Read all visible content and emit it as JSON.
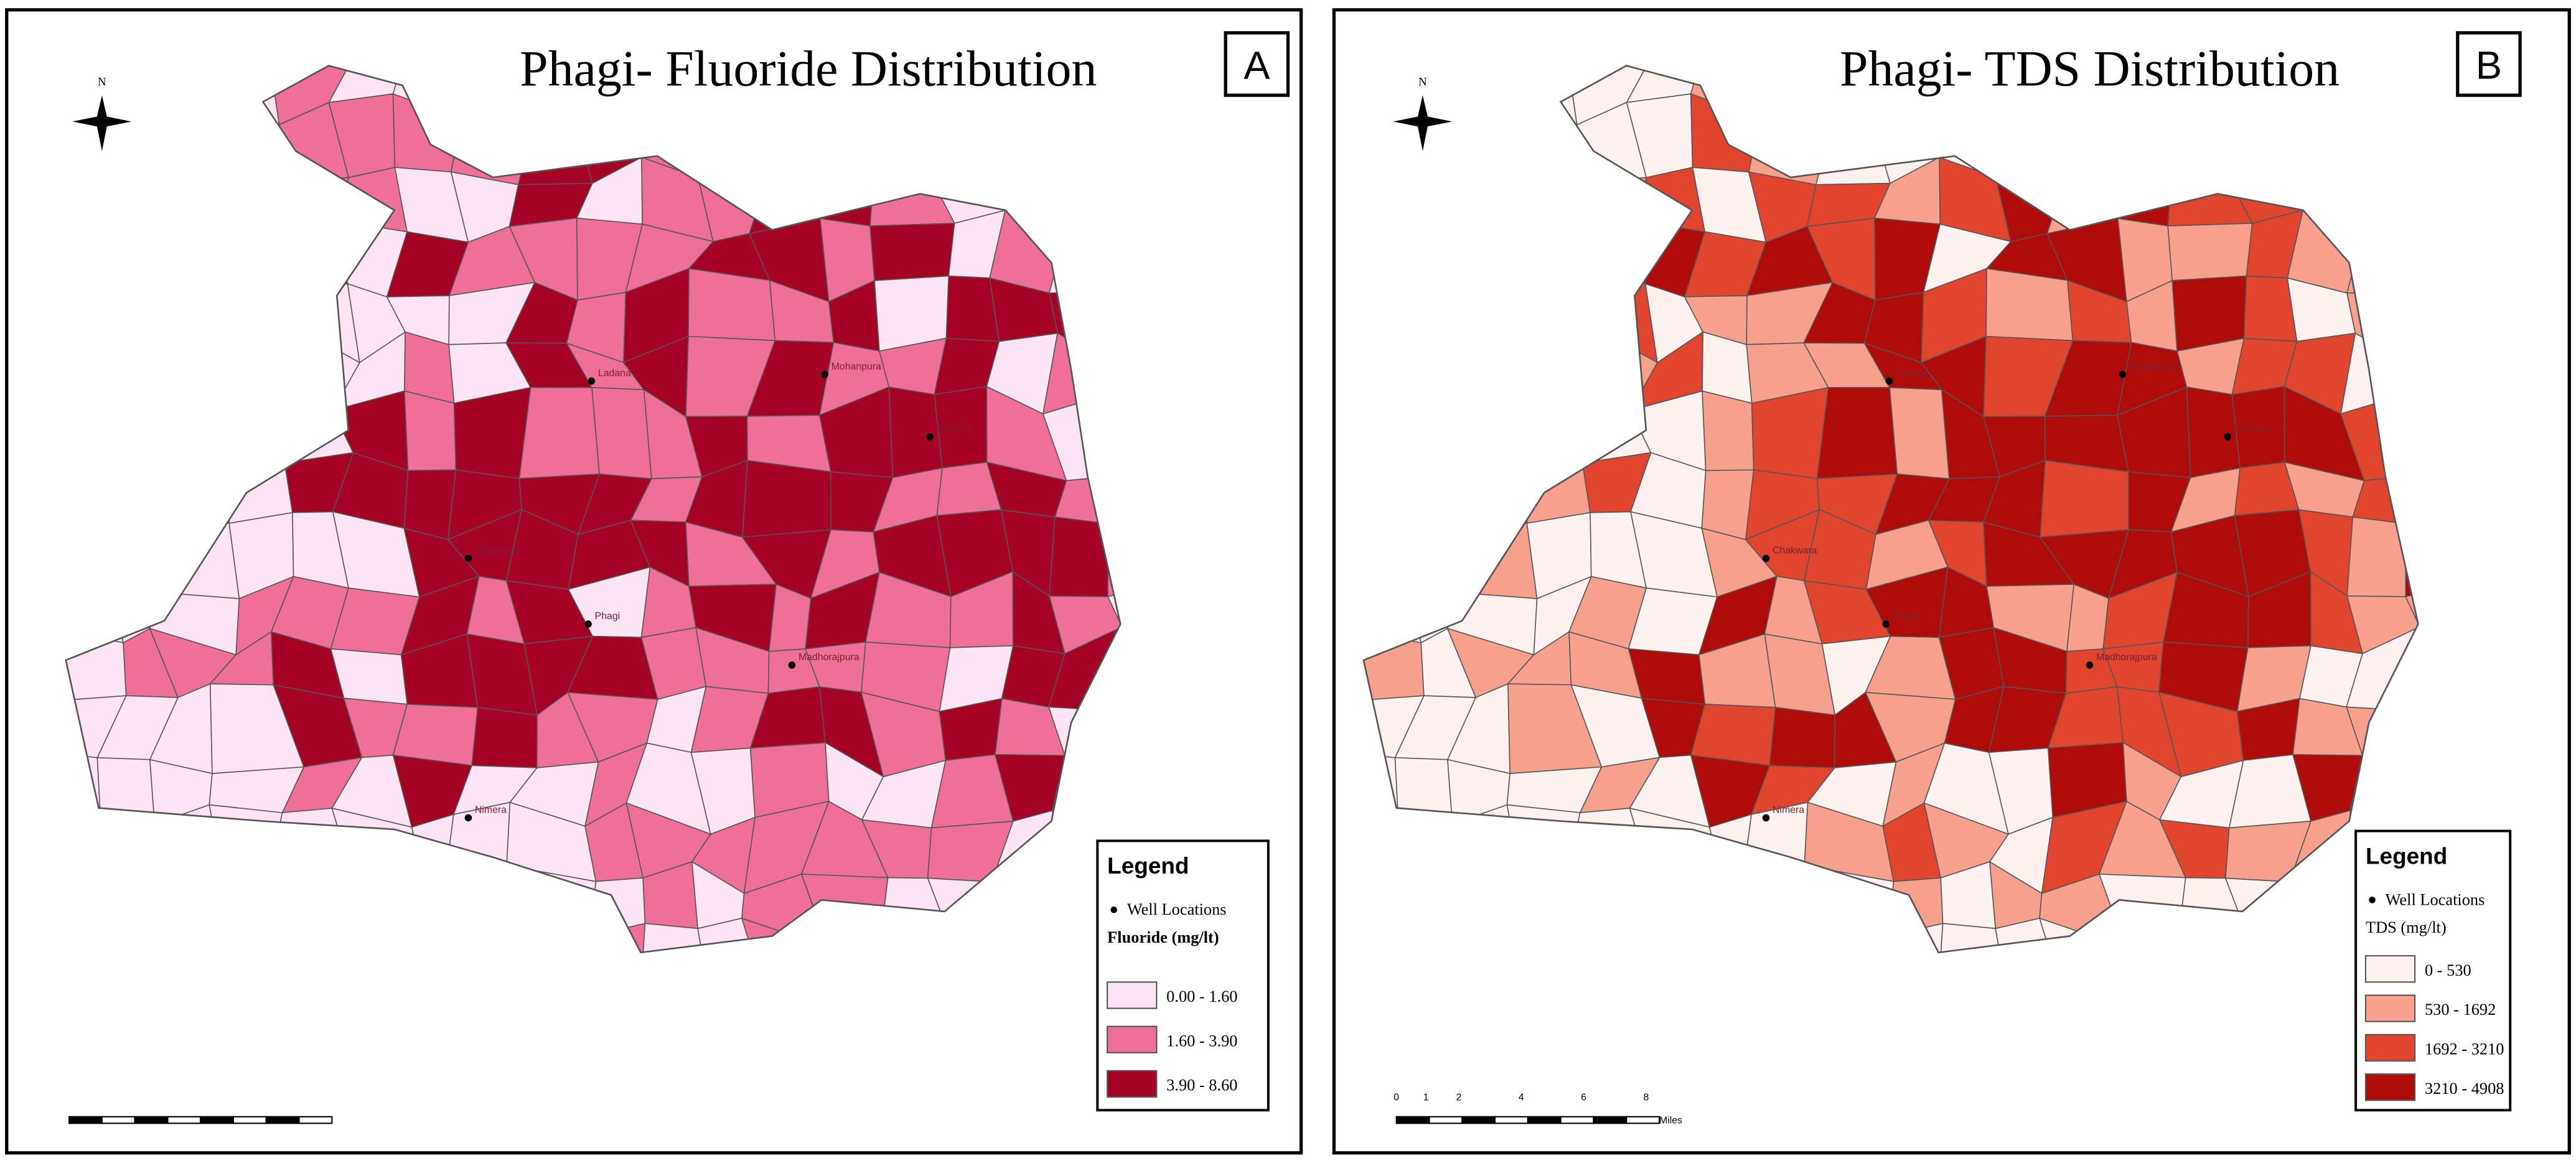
{
  "panels": [
    {
      "label": "A",
      "title": "Phagi- Fluoride Distribution",
      "legend": {
        "title": "Legend",
        "well": "Well Locations",
        "unit": "Fluoride (mg/lt)",
        "classes": [
          {
            "label": "0.00 - 1.60",
            "color": "#fce4f4"
          },
          {
            "label": "1.60 - 3.90",
            "color": "#ef6f98"
          },
          {
            "label": "3.90 - 8.60",
            "color": "#a60226"
          }
        ]
      }
    },
    {
      "label": "B",
      "title": "Phagi- TDS Distribution",
      "legend": {
        "title": "Legend",
        "well": "Well Locations",
        "unit": "TDS (mg/lt)",
        "classes": [
          {
            "label": "0 - 530",
            "color": "#fdf1ef"
          },
          {
            "label": "530 - 1692",
            "color": "#f7a08d"
          },
          {
            "label": "1692 - 3210",
            "color": "#e2452e"
          },
          {
            "label": "3210 - 4908",
            "color": "#b00b0b"
          }
        ]
      }
    }
  ],
  "north": "N",
  "villages": [
    "Chakwara",
    "Phagi",
    "Chittora",
    "Madhorajpura",
    "Ladana",
    "Nimera",
    "Mohanpura"
  ],
  "scale": {
    "ticks": [
      "0",
      "1",
      "2",
      "4",
      "6",
      "8"
    ],
    "unit": "Miles"
  }
}
